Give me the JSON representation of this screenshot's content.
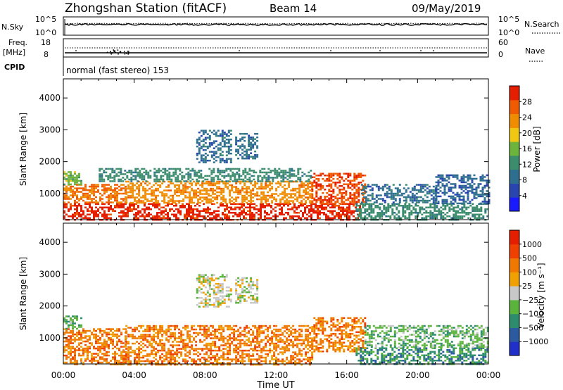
{
  "header": {
    "station": "Zhongshan Station (fitACF)",
    "beam": "Beam 14",
    "date": "09/May/2019"
  },
  "aux": {
    "nsky_label": "N.Sky",
    "nsearch_label": "N.Search",
    "freq_label": "Freq.",
    "freq_unit": "[MHz]",
    "cpid_label": "CPID",
    "nave_label": "Nave",
    "cpid_text": "normal (fast stereo) 153",
    "nsky_ticks": [
      "10^5",
      "10^0"
    ],
    "nsearch_ticks": [
      "10^5",
      "10^0"
    ],
    "freq_ticks": [
      "18",
      "8"
    ],
    "nave_ticks": [
      "60",
      "0"
    ]
  },
  "chart_data": [
    {
      "type": "heatmap",
      "name": "Power",
      "ylabel": "Slant Range [km]",
      "xlabel": "Time UT",
      "x_ticks": [
        "00:00",
        "04:00",
        "08:00",
        "12:00",
        "16:00",
        "20:00",
        "00:00"
      ],
      "xlim": [
        0,
        24
      ],
      "ylim": [
        180,
        4600
      ],
      "y_ticks": [
        1000,
        2000,
        3000,
        4000
      ],
      "colorbar": {
        "label": "Power [dB]",
        "range": [
          0,
          32
        ],
        "ticks": [
          4,
          8,
          12,
          16,
          20,
          24,
          28
        ],
        "colors": [
          "#1a1aff",
          "#2845b0",
          "#2e6e8e",
          "#3c8c6e",
          "#6cb43c",
          "#f0c814",
          "#f08c00",
          "#f05a00",
          "#e61e00"
        ]
      },
      "regions": [
        {
          "t0": 0.0,
          "t1": 16.8,
          "r0": 180,
          "r1": 700,
          "level": 28
        },
        {
          "t0": 0.0,
          "t1": 3.5,
          "r0": 700,
          "r1": 1300,
          "level": 24
        },
        {
          "t0": 0.0,
          "t1": 1.0,
          "r0": 1300,
          "r1": 1700,
          "level": 14
        },
        {
          "t0": 3.5,
          "t1": 14.0,
          "r0": 700,
          "r1": 1400,
          "level": 22
        },
        {
          "t0": 14.0,
          "t1": 17.0,
          "r0": 700,
          "r1": 1650,
          "level": 26
        },
        {
          "t0": 2.0,
          "t1": 14.0,
          "r0": 1400,
          "r1": 1800,
          "level": 10
        },
        {
          "t0": 7.5,
          "t1": 9.5,
          "r0": 2000,
          "r1": 3000,
          "level": 7
        },
        {
          "t0": 9.7,
          "t1": 11.0,
          "r0": 2100,
          "r1": 2900,
          "level": 7
        },
        {
          "t0": 16.5,
          "t1": 24.0,
          "r0": 180,
          "r1": 700,
          "level": 10
        },
        {
          "t0": 16.8,
          "t1": 21.0,
          "r0": 700,
          "r1": 1300,
          "level": 7
        },
        {
          "t0": 21.0,
          "t1": 24.0,
          "r0": 700,
          "r1": 1600,
          "level": 6
        }
      ]
    },
    {
      "type": "heatmap",
      "name": "Velocity",
      "ylabel": "Slant Range [km]",
      "xlabel": "Time UT",
      "x_ticks": [
        "00:00",
        "04:00",
        "08:00",
        "12:00",
        "16:00",
        "20:00",
        "00:00"
      ],
      "xlim": [
        0,
        24
      ],
      "ylim": [
        180,
        4600
      ],
      "y_ticks": [
        1000,
        2000,
        3000,
        4000
      ],
      "colorbar": {
        "label": "Velocity [m s⁻¹]",
        "ticks": [
          "1000",
          "500",
          "100",
          "25",
          "−25",
          "−100",
          "−500",
          "−1000"
        ],
        "colors": [
          "#2030c8",
          "#2c5aa0",
          "#2e8c6e",
          "#5ab43c",
          "#c8c8c8",
          "#f0a000",
          "#f07800",
          "#f04000",
          "#e61e00"
        ]
      },
      "regions": [
        {
          "t0": 0.0,
          "t1": 3.5,
          "r0": 180,
          "r1": 1300,
          "level": 6
        },
        {
          "t0": 3.5,
          "t1": 14.0,
          "r0": 180,
          "r1": 1400,
          "level": 6
        },
        {
          "t0": 0.0,
          "t1": 1.0,
          "r0": 1300,
          "r1": 1700,
          "level": 3
        },
        {
          "t0": 14.0,
          "t1": 17.0,
          "r0": 600,
          "r1": 1650,
          "level": 6
        },
        {
          "t0": 7.5,
          "t1": 9.5,
          "r0": 2000,
          "r1": 3000,
          "level": 4
        },
        {
          "t0": 9.7,
          "t1": 11.0,
          "r0": 2100,
          "r1": 2900,
          "level": 4
        },
        {
          "t0": 16.5,
          "t1": 24.0,
          "r0": 180,
          "r1": 700,
          "level": 2
        },
        {
          "t0": 17.0,
          "t1": 24.0,
          "r0": 700,
          "r1": 1400,
          "level": 3
        }
      ]
    }
  ]
}
